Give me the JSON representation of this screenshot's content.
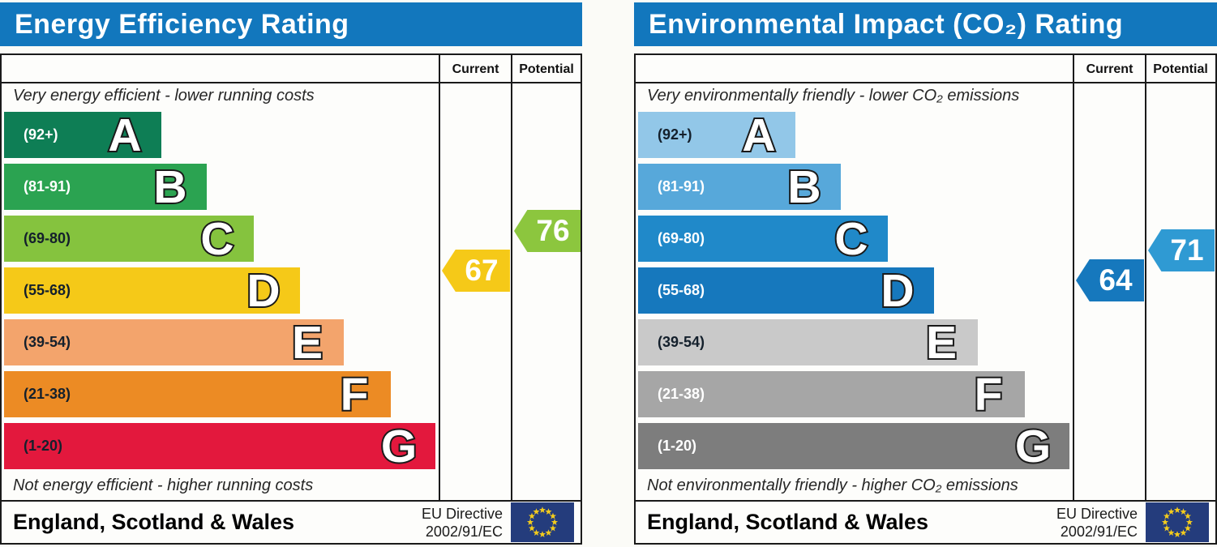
{
  "page": {
    "background": "#fbfbf7",
    "title_bar_color": "#1277bd",
    "border_color": "#1a1a1a"
  },
  "eu_flag": {
    "background": "#243c7c",
    "star_color": "#f2cb1d"
  },
  "chart_data": [
    {
      "type": "bar",
      "id": "energy-efficiency-rating",
      "title": "Energy Efficiency Rating",
      "column_headers": {
        "current": "Current",
        "potential": "Potential"
      },
      "top_caption": "Very energy efficient - lower running costs",
      "bottom_caption": "Not energy efficient - higher running costs",
      "footer_region": "England, Scotland & Wales",
      "footer_directive_line1": "EU Directive",
      "footer_directive_line2": "2002/91/EC",
      "bands": [
        {
          "letter": "A",
          "range_label": "(92+)",
          "min": 92,
          "max": 100,
          "width_pct": 36.2,
          "color": "#0e7e55",
          "label_color": "#ffffff"
        },
        {
          "letter": "B",
          "range_label": "(81-91)",
          "min": 81,
          "max": 91,
          "width_pct": 46.8,
          "color": "#2ba351",
          "label_color": "#ffffff"
        },
        {
          "letter": "C",
          "range_label": "(69-80)",
          "min": 69,
          "max": 80,
          "width_pct": 57.6,
          "color": "#85c33e",
          "label_color": "#14202c"
        },
        {
          "letter": "D",
          "range_label": "(55-68)",
          "min": 55,
          "max": 68,
          "width_pct": 68.2,
          "color": "#f5c918",
          "label_color": "#14202c"
        },
        {
          "letter": "E",
          "range_label": "(39-54)",
          "min": 39,
          "max": 54,
          "width_pct": 78.4,
          "color": "#f3a46c",
          "label_color": "#14202c"
        },
        {
          "letter": "F",
          "range_label": "(21-38)",
          "min": 21,
          "max": 38,
          "width_pct": 89.1,
          "color": "#ec8b24",
          "label_color": "#14202c"
        },
        {
          "letter": "G",
          "range_label": "(1-20)",
          "min": 1,
          "max": 20,
          "width_pct": 99.4,
          "color": "#e3183d",
          "label_color": "#14202c"
        }
      ],
      "current": {
        "value": 67,
        "band": "D",
        "color": "#f5c918"
      },
      "potential": {
        "value": 76,
        "band": "C",
        "color": "#8cc63e"
      }
    },
    {
      "type": "bar",
      "id": "environmental-impact-co2-rating",
      "title": "Environmental Impact (CO₂) Rating",
      "column_headers": {
        "current": "Current",
        "potential": "Potential"
      },
      "top_caption": "Very environmentally friendly - lower CO₂ emissions",
      "bottom_caption": "Not environmentally friendly - higher CO₂ emissions",
      "footer_region": "England, Scotland & Wales",
      "footer_directive_line1": "EU Directive",
      "footer_directive_line2": "2002/91/EC",
      "bands": [
        {
          "letter": "A",
          "range_label": "(92+)",
          "min": 92,
          "max": 100,
          "width_pct": 36.2,
          "color": "#92c7e8",
          "label_color": "#14202c"
        },
        {
          "letter": "B",
          "range_label": "(81-91)",
          "min": 81,
          "max": 91,
          "width_pct": 46.8,
          "color": "#57a8da",
          "label_color": "#ffffff"
        },
        {
          "letter": "C",
          "range_label": "(69-80)",
          "min": 69,
          "max": 80,
          "width_pct": 57.6,
          "color": "#2089c9",
          "label_color": "#ffffff"
        },
        {
          "letter": "D",
          "range_label": "(55-68)",
          "min": 55,
          "max": 68,
          "width_pct": 68.2,
          "color": "#1678bd",
          "label_color": "#ffffff"
        },
        {
          "letter": "E",
          "range_label": "(39-54)",
          "min": 39,
          "max": 54,
          "width_pct": 78.4,
          "color": "#c9c9c9",
          "label_color": "#14202c"
        },
        {
          "letter": "F",
          "range_label": "(21-38)",
          "min": 21,
          "max": 38,
          "width_pct": 89.1,
          "color": "#a6a6a6",
          "label_color": "#ffffff"
        },
        {
          "letter": "G",
          "range_label": "(1-20)",
          "min": 1,
          "max": 20,
          "width_pct": 99.4,
          "color": "#7d7d7d",
          "label_color": "#ffffff"
        }
      ],
      "current": {
        "value": 64,
        "band": "D",
        "color": "#1678bd"
      },
      "potential": {
        "value": 71,
        "band": "C",
        "color": "#2f9ad3"
      }
    }
  ]
}
